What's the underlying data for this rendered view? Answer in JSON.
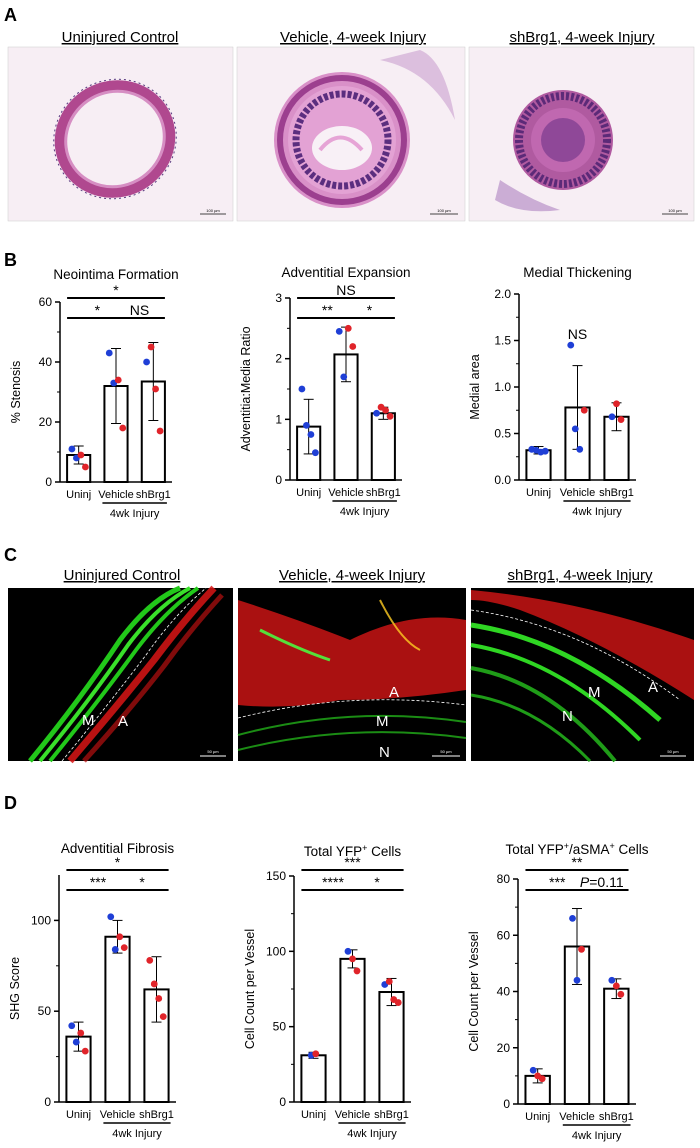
{
  "panels": {
    "A": "A",
    "B": "B",
    "C": "C",
    "D": "D"
  },
  "panel_a": {
    "titles": [
      "Uninjured Control",
      "Vehicle, 4-week Injury",
      "shBrg1, 4-week Injury"
    ],
    "scale_bars": [
      "100 µm",
      "100 µm",
      "100 µm"
    ]
  },
  "panel_c": {
    "titles": [
      "Uninjured Control",
      "Vehicle, 4-week Injury",
      "shBrg1, 4-week Injury"
    ],
    "labels": [
      {
        "M": "M",
        "A": "A"
      },
      {
        "A": "A",
        "M": "M",
        "N": "N"
      },
      {
        "M": "M",
        "N": "N",
        "A": "A"
      }
    ],
    "scale_bars": [
      "50 µm",
      "50 µm",
      "50 µm"
    ]
  },
  "colors": {
    "blue_dot": "#1f3fd6",
    "red_dot": "#e0242a",
    "he_stain": "#c873b4",
    "green_fluor": "#33dd22",
    "red_fluor": "#e21414"
  },
  "chart_data": [
    {
      "type": "bar",
      "title": "Neointima Formation",
      "ylabel": "% Stenosis",
      "ylim": [
        0,
        60
      ],
      "yticks": [
        0,
        20,
        40,
        60
      ],
      "categories": [
        "Uninj",
        "Vehicle",
        "shBrg1"
      ],
      "group_label": "4wk Injury",
      "values": [
        9,
        32,
        33.5
      ],
      "errors": [
        3,
        12.5,
        13
      ],
      "points": [
        {
          "category": "Uninj",
          "blue": [
            11,
            8
          ],
          "red": [
            9,
            5
          ]
        },
        {
          "category": "Vehicle",
          "blue": [
            43,
            33
          ],
          "red": [
            34,
            18
          ]
        },
        {
          "category": "shBrg1",
          "blue": [
            40
          ],
          "red": [
            45,
            31,
            17
          ]
        }
      ],
      "significance": [
        {
          "from": "Uninj",
          "to": "shBrg1",
          "label": "*"
        },
        {
          "from": "Uninj",
          "to": "Vehicle",
          "label": "*"
        },
        {
          "from": "Vehicle",
          "to": "shBrg1",
          "label": "NS"
        }
      ]
    },
    {
      "type": "bar",
      "title": "Adventitial Expansion",
      "ylabel": "Adventitia:Media Ratio",
      "ylim": [
        0,
        3
      ],
      "yticks": [
        0,
        1,
        2,
        3
      ],
      "categories": [
        "Uninj",
        "Vehicle",
        "shBrg1"
      ],
      "group_label": "4wk Injury",
      "values": [
        0.88,
        2.07,
        1.1
      ],
      "errors": [
        0.45,
        0.45,
        0.1
      ],
      "points": [
        {
          "category": "Uninj",
          "blue": [
            1.5,
            0.9,
            0.75,
            0.45
          ],
          "red": []
        },
        {
          "category": "Vehicle",
          "blue": [
            2.45,
            1.7
          ],
          "red": [
            2.5,
            2.2
          ]
        },
        {
          "category": "shBrg1",
          "blue": [
            1.1
          ],
          "red": [
            1.2,
            1.15,
            1.05
          ]
        }
      ],
      "significance": [
        {
          "from": "Uninj",
          "to": "shBrg1",
          "label": "NS"
        },
        {
          "from": "Uninj",
          "to": "Vehicle",
          "label": "**"
        },
        {
          "from": "Vehicle",
          "to": "shBrg1",
          "label": "*"
        }
      ]
    },
    {
      "type": "bar",
      "title": "Medial Thickening",
      "ylabel": "Medial area",
      "ylim": [
        0,
        2
      ],
      "yticks": [
        0.0,
        0.5,
        1.0,
        1.5,
        2.0
      ],
      "yticklabels": [
        "0.0",
        "0.5",
        "1.0",
        "1.5",
        "2.0"
      ],
      "categories": [
        "Uninj",
        "Vehicle",
        "shBrg1"
      ],
      "group_label": "4wk Injury",
      "values": [
        0.32,
        0.78,
        0.68
      ],
      "errors": [
        0.04,
        0.45,
        0.15
      ],
      "points": [
        {
          "category": "Uninj",
          "blue": [
            0.33,
            0.32,
            0.3,
            0.31
          ],
          "red": []
        },
        {
          "category": "Vehicle",
          "blue": [
            1.45,
            0.55,
            0.33
          ],
          "red": [
            0.75
          ]
        },
        {
          "category": "shBrg1",
          "blue": [
            0.68
          ],
          "red": [
            0.82,
            0.65
          ]
        }
      ],
      "significance": [
        {
          "at": "Vehicle",
          "label": "NS"
        }
      ]
    },
    {
      "type": "bar",
      "title": "Adventitial Fibrosis",
      "ylabel": "SHG Score",
      "ylim": [
        0,
        125
      ],
      "yticks": [
        0,
        50,
        100
      ],
      "categories": [
        "Uninj",
        "Vehicle",
        "shBrg1"
      ],
      "group_label": "4wk Injury",
      "values": [
        36,
        91,
        62
      ],
      "errors": [
        8,
        9,
        18
      ],
      "points": [
        {
          "category": "Uninj",
          "blue": [
            42,
            33
          ],
          "red": [
            38,
            28
          ]
        },
        {
          "category": "Vehicle",
          "blue": [
            102,
            84
          ],
          "red": [
            91,
            85
          ]
        },
        {
          "category": "shBrg1",
          "blue": [],
          "red": [
            78,
            65,
            57,
            47
          ]
        }
      ],
      "significance": [
        {
          "from": "Uninj",
          "to": "shBrg1",
          "label": "*"
        },
        {
          "from": "Uninj",
          "to": "Vehicle",
          "label": "***"
        },
        {
          "from": "Vehicle",
          "to": "shBrg1",
          "label": "*"
        }
      ]
    },
    {
      "type": "bar",
      "title": "Total YFP+ Cells",
      "title_main": "Total YFP",
      "title_sup": "+",
      "title_end": " Cells",
      "ylabel": "Cell Count per Vessel",
      "ylim": [
        0,
        150
      ],
      "yticks": [
        0,
        50,
        100,
        150
      ],
      "categories": [
        "Uninj",
        "Vehicle",
        "shBrg1"
      ],
      "group_label": "4wk Injury",
      "values": [
        31,
        95,
        73
      ],
      "errors": [
        2,
        6,
        9
      ],
      "points": [
        {
          "category": "Uninj",
          "blue": [
            31
          ],
          "red": [
            32
          ]
        },
        {
          "category": "Vehicle",
          "blue": [
            100
          ],
          "red": [
            95,
            87
          ]
        },
        {
          "category": "shBrg1",
          "blue": [
            78
          ],
          "red": [
            80,
            68,
            66
          ]
        }
      ],
      "significance": [
        {
          "from": "Uninj",
          "to": "shBrg1",
          "label": "***"
        },
        {
          "from": "Uninj",
          "to": "Vehicle",
          "label": "****"
        },
        {
          "from": "Vehicle",
          "to": "shBrg1",
          "label": "*"
        }
      ]
    },
    {
      "type": "bar",
      "title": "Total YFP+/aSMA+ Cells",
      "title_main": "Total YFP",
      "title_sup": "+",
      "title_mid": "/aSMA",
      "title_sup2": "+",
      "title_end": " Cells",
      "ylabel": "Cell Count per Vessel",
      "ylim": [
        0,
        80
      ],
      "yticks": [
        0,
        20,
        40,
        60,
        80
      ],
      "categories": [
        "Uninj",
        "Vehicle",
        "shBrg1"
      ],
      "group_label": "4wk Injury",
      "values": [
        10,
        56,
        41
      ],
      "errors": [
        2.5,
        13.5,
        3.5
      ],
      "points": [
        {
          "category": "Uninj",
          "blue": [
            12
          ],
          "red": [
            10,
            9
          ]
        },
        {
          "category": "Vehicle",
          "blue": [
            66,
            44
          ],
          "red": [
            55
          ]
        },
        {
          "category": "shBrg1",
          "blue": [
            44
          ],
          "red": [
            42,
            39
          ]
        }
      ],
      "significance": [
        {
          "from": "Uninj",
          "to": "shBrg1",
          "label": "**"
        },
        {
          "from": "Uninj",
          "to": "Vehicle",
          "label": "***"
        },
        {
          "from": "Vehicle",
          "to": "shBrg1",
          "label": "P=0.11",
          "italic_prefix": "P",
          "suffix": "=0.11"
        }
      ]
    }
  ]
}
